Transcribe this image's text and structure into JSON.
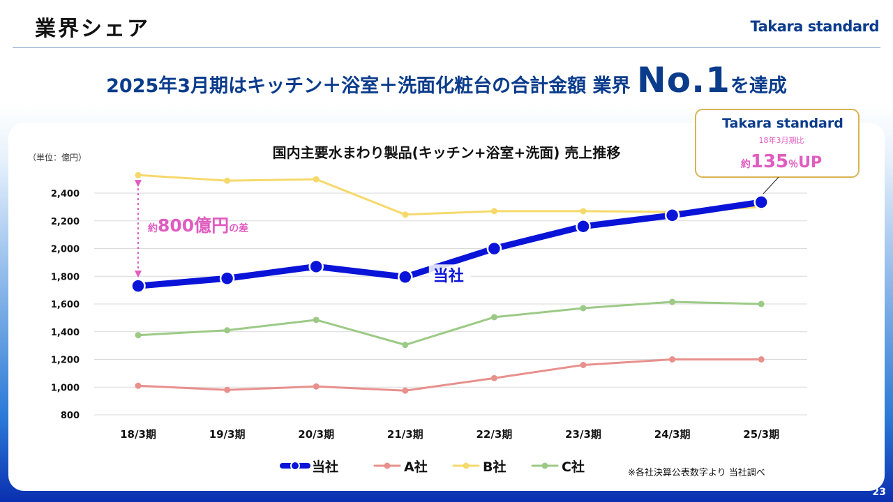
{
  "header": {
    "title": "業界シェア",
    "brand": "Takara standard"
  },
  "headline": {
    "prefix": "2025年3月期はキッチン＋浴室＋洗面化粧台の合計金額 業界 ",
    "highlight": "No.1",
    "suffix": "を達成"
  },
  "callout": {
    "brand": "Takara standard",
    "sub": "18年3月期比",
    "prefix": "約",
    "value": "135",
    "unit": "％",
    "suffix": "UP"
  },
  "gap_annotation": {
    "prefix": "約",
    "value": "800億円",
    "suffix": "の差"
  },
  "footnote": "※各社決算公表数字より 当社調べ",
  "page_number": "23",
  "colors": {
    "navy": "#0b3c8c",
    "brand_blue": "#0a14d8",
    "company_a": "#e8908c",
    "company_b": "#f6d96b",
    "company_c": "#9cca86",
    "gap_pink": "#e05cc0",
    "grid": "#d9d9d9"
  },
  "chart_data": {
    "type": "line",
    "title": "国内主要水まわり製品(キッチン+浴室+洗面) 売上推移",
    "unit_label": "（単位：億円）",
    "categories": [
      "18/3期",
      "19/3期",
      "20/3期",
      "21/3期",
      "22/3期",
      "23/3期",
      "24/3期",
      "25/3期"
    ],
    "ylim": [
      800,
      2500
    ],
    "yticks": [
      800,
      1000,
      1200,
      1400,
      1600,
      1800,
      2000,
      2200,
      2400
    ],
    "ytick_labels": [
      "800",
      "1,000",
      "1,200",
      "1,400",
      "1,600",
      "1,800",
      "2,000",
      "2,200",
      "2,400"
    ],
    "series": [
      {
        "key": "b",
        "name": "B社",
        "color": "#f6d96b",
        "values": [
          2530,
          2490,
          2500,
          2245,
          2270,
          2270,
          2265,
          2300
        ]
      },
      {
        "key": "c",
        "name": "C社",
        "color": "#9cca86",
        "values": [
          1375,
          1410,
          1485,
          1305,
          1505,
          1570,
          1615,
          1600
        ]
      },
      {
        "key": "a",
        "name": "A社",
        "color": "#e8908c",
        "values": [
          1010,
          980,
          1005,
          975,
          1065,
          1160,
          1200,
          1200
        ]
      },
      {
        "key": "own",
        "name": "当社",
        "color": "#0a14d8",
        "values": [
          1730,
          1785,
          1870,
          1795,
          2000,
          2160,
          2240,
          2335
        ]
      }
    ],
    "series_inline_label": "当社",
    "legend_order": [
      "own",
      "a",
      "b",
      "c"
    ],
    "legend_position": "bottom",
    "grid": true
  }
}
